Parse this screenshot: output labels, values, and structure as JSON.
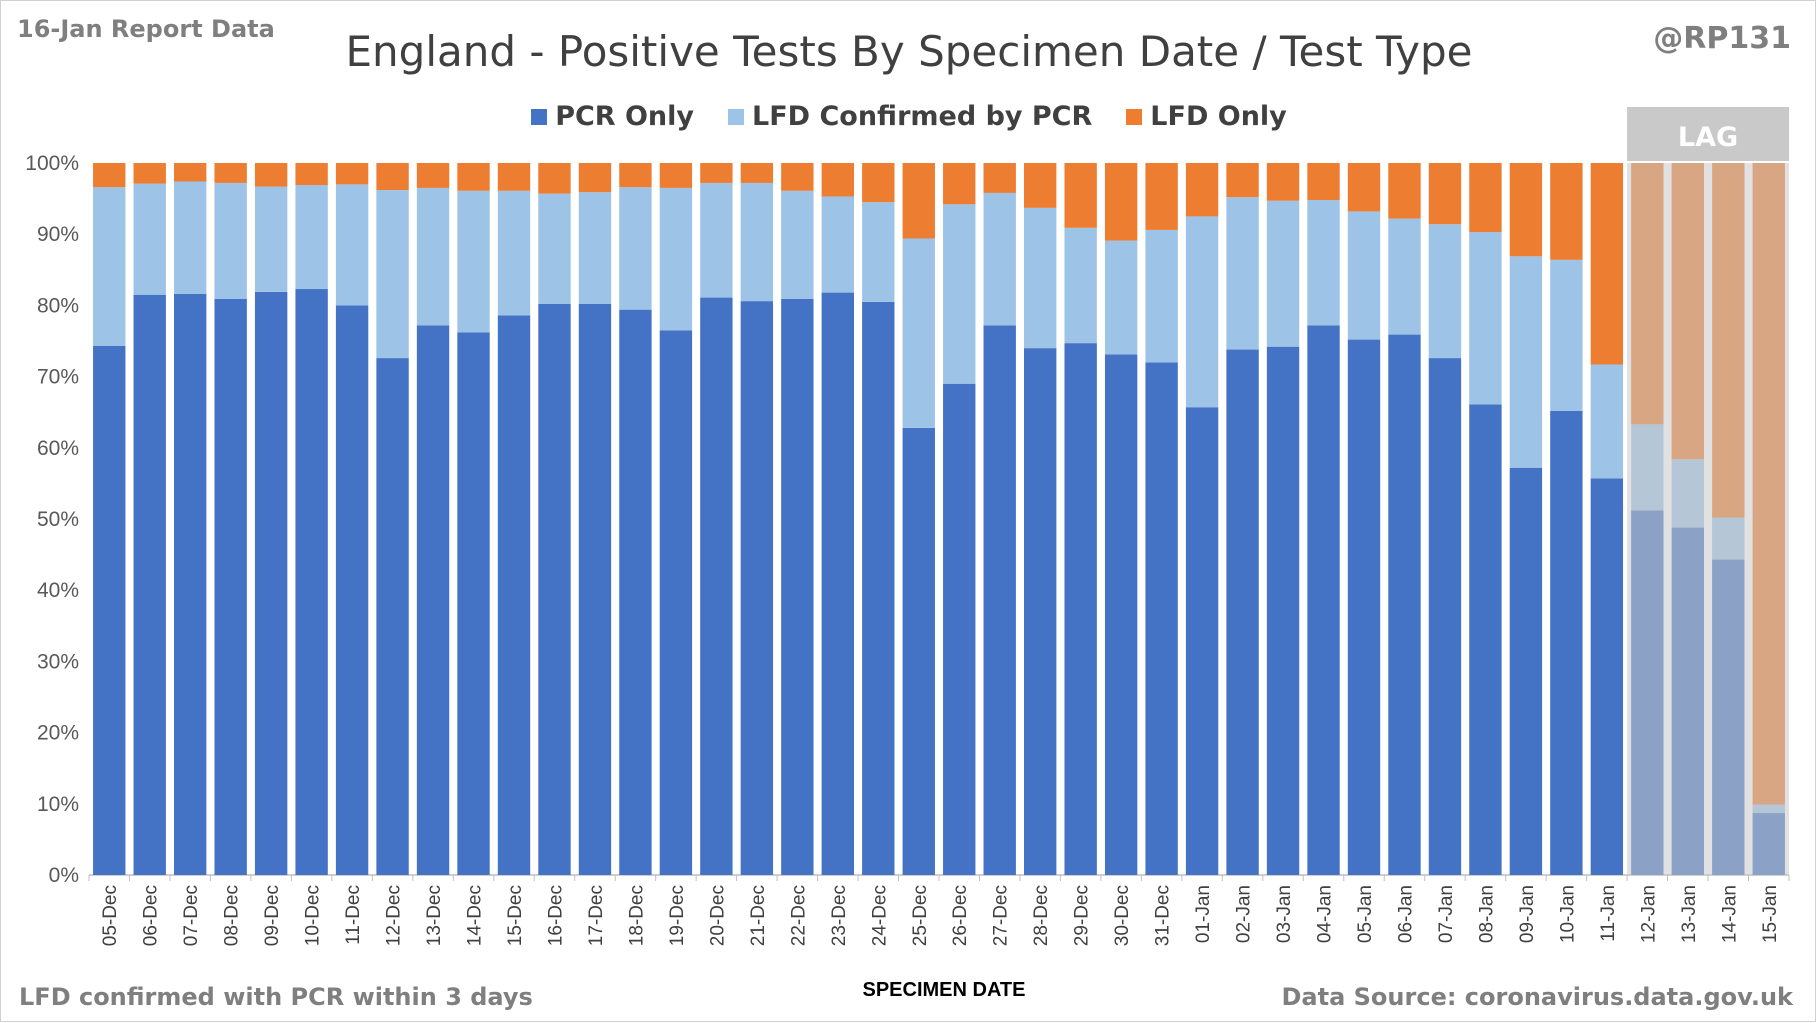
{
  "header": {
    "report_label": "16-Jan Report Data",
    "author_handle": "@RP131"
  },
  "footer": {
    "footnote": "LFD confirmed with PCR within 3 days",
    "data_source": "Data Source: coronavirus.data.gov.uk"
  },
  "colors": {
    "pcr_only": "#4472C4",
    "lfd_confirmed": "#9DC3E6",
    "lfd_only": "#ED7D31",
    "lag_overlay": "#C9C9C9"
  },
  "chart_data": {
    "type": "bar",
    "stacked": "percent",
    "title": "England - Positive Tests By Specimen Date / Test Type",
    "xlabel": "SPECIMEN DATE",
    "ylabel": "",
    "ylim": [
      0,
      100
    ],
    "y_ticks": [
      "0%",
      "10%",
      "20%",
      "30%",
      "40%",
      "50%",
      "60%",
      "70%",
      "80%",
      "90%",
      "100%"
    ],
    "grid": false,
    "legend_position": "top",
    "categories": [
      "05-Dec",
      "06-Dec",
      "07-Dec",
      "08-Dec",
      "09-Dec",
      "10-Dec",
      "11-Dec",
      "12-Dec",
      "13-Dec",
      "14-Dec",
      "15-Dec",
      "16-Dec",
      "17-Dec",
      "18-Dec",
      "19-Dec",
      "20-Dec",
      "21-Dec",
      "22-Dec",
      "23-Dec",
      "24-Dec",
      "25-Dec",
      "26-Dec",
      "27-Dec",
      "28-Dec",
      "29-Dec",
      "30-Dec",
      "31-Dec",
      "01-Jan",
      "02-Jan",
      "03-Jan",
      "04-Jan",
      "05-Jan",
      "06-Jan",
      "07-Jan",
      "08-Jan",
      "09-Jan",
      "10-Jan",
      "11-Jan",
      "12-Jan",
      "13-Jan",
      "14-Jan",
      "15-Jan"
    ],
    "series": [
      {
        "name": "PCR Only",
        "values": [
          74.3,
          81.5,
          81.6,
          80.9,
          81.9,
          82.3,
          80.0,
          72.6,
          77.2,
          76.2,
          78.6,
          80.2,
          80.2,
          79.4,
          76.5,
          81.1,
          80.6,
          80.9,
          81.8,
          80.5,
          62.8,
          69.0,
          77.2,
          74.0,
          74.7,
          73.1,
          72.0,
          65.7,
          73.8,
          74.2,
          77.2,
          75.2,
          75.9,
          72.6,
          66.1,
          57.2,
          65.2,
          55.7,
          51.2,
          48.8,
          44.3,
          8.7
        ]
      },
      {
        "name": "LFD Confirmed by PCR",
        "values": [
          22.3,
          15.6,
          15.8,
          16.3,
          14.8,
          14.6,
          17.0,
          23.6,
          19.3,
          19.9,
          17.5,
          15.5,
          15.7,
          17.2,
          20.0,
          16.1,
          16.6,
          15.2,
          13.5,
          14.0,
          26.6,
          25.2,
          18.6,
          19.7,
          16.2,
          16.0,
          18.6,
          26.8,
          21.4,
          20.5,
          17.6,
          18.0,
          16.3,
          18.8,
          24.2,
          29.7,
          21.2,
          16.0,
          12.1,
          9.6,
          5.9,
          1.2
        ]
      },
      {
        "name": "LFD Only",
        "values": [
          3.4,
          2.9,
          2.6,
          2.8,
          3.3,
          3.1,
          3.0,
          3.8,
          3.5,
          3.9,
          3.9,
          4.3,
          4.1,
          3.4,
          3.5,
          2.8,
          2.8,
          3.9,
          4.7,
          5.5,
          10.6,
          5.8,
          4.2,
          6.3,
          9.1,
          10.9,
          9.4,
          7.5,
          4.8,
          5.3,
          5.2,
          6.8,
          7.8,
          8.6,
          9.7,
          13.1,
          13.6,
          28.3,
          36.7,
          41.6,
          49.8,
          90.1
        ]
      }
    ],
    "lag_band": {
      "label": "LAG",
      "categories": [
        "12-Jan",
        "13-Jan",
        "14-Jan",
        "15-Jan"
      ]
    }
  }
}
